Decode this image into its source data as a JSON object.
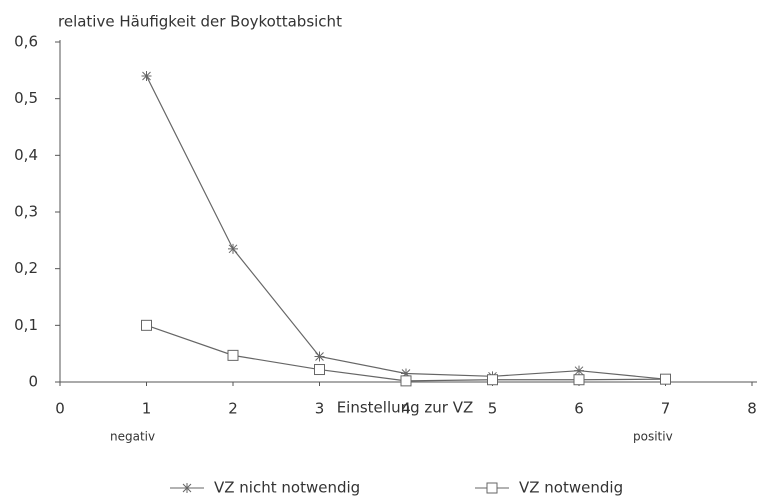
{
  "chart_data": {
    "type": "line",
    "ylabel": "relative Häufigkeit der Boykottabsicht",
    "xlabel": "Einstellung zur VZ",
    "annotations": [
      "negativ",
      "positiv"
    ],
    "x": [
      1,
      2,
      3,
      4,
      5,
      6,
      7
    ],
    "series": [
      {
        "name": "VZ nicht notwendig",
        "color": "#666666",
        "marker": "star",
        "values": [
          0.54,
          0.235,
          0.045,
          0.015,
          0.01,
          0.02,
          0.005
        ]
      },
      {
        "name": "VZ notwendig",
        "color": "#666666",
        "marker": "square",
        "values": [
          0.1,
          0.047,
          0.022,
          0.002,
          0.004,
          0.004,
          0.005
        ]
      }
    ],
    "xlim": [
      0,
      8
    ],
    "xticks": [
      0,
      1,
      2,
      3,
      4,
      5,
      6,
      7,
      8
    ],
    "ylim": [
      0,
      0.6
    ],
    "yticks": [
      0,
      {
        "value": 0.1,
        "label": "0,1"
      },
      {
        "value": 0.2,
        "label": "0,2"
      },
      {
        "value": 0.3,
        "label": "0,3"
      },
      {
        "value": 0.4,
        "label": "0,4"
      },
      {
        "value": 0.5,
        "label": "0,5"
      },
      {
        "value": 0.6,
        "label": "0,6"
      }
    ],
    "grid": false,
    "legend": "bottom"
  }
}
